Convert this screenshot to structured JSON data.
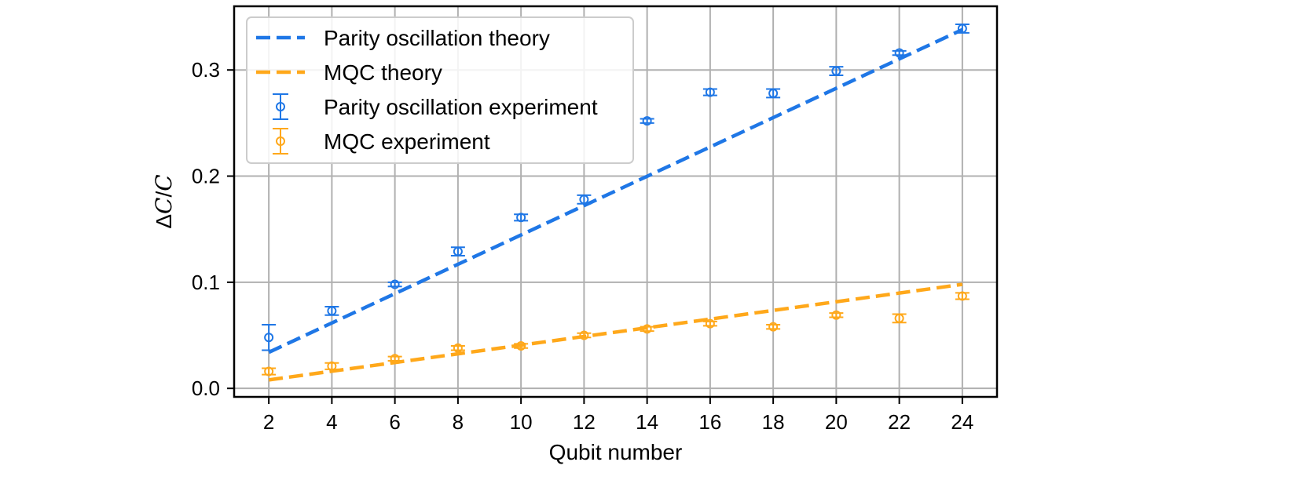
{
  "chart_data": {
    "type": "scatter",
    "xlabel": "Qubit number",
    "ylabel": "ΔC/C",
    "xlim": [
      0.9,
      25.1
    ],
    "ylim": [
      -0.008,
      0.36
    ],
    "x_ticks": [
      2,
      4,
      6,
      8,
      10,
      12,
      14,
      16,
      18,
      20,
      22,
      24
    ],
    "y_ticks": [
      0.0,
      0.1,
      0.2,
      0.3
    ],
    "y_tick_labels": [
      "0.0",
      "0.1",
      "0.2",
      "0.3"
    ],
    "grid": true,
    "legend_position": "upper-left",
    "theory": [
      {
        "name": "Parity oscillation theory",
        "color": "#1f77e6",
        "style": "dashed",
        "x": [
          2,
          24
        ],
        "y": [
          0.034,
          0.338
        ]
      },
      {
        "name": "MQC theory",
        "color": "#ffa81a",
        "style": "dashed",
        "x": [
          2,
          24
        ],
        "y": [
          0.008,
          0.098
        ]
      }
    ],
    "experiments": [
      {
        "name": "Parity oscillation experiment",
        "color": "#1f77e6",
        "x": [
          2,
          4,
          6,
          8,
          10,
          12,
          14,
          16,
          18,
          20,
          22,
          24
        ],
        "y": [
          0.048,
          0.073,
          0.098,
          0.129,
          0.161,
          0.178,
          0.252,
          0.279,
          0.278,
          0.299,
          0.316,
          0.339
        ],
        "err": [
          0.012,
          0.004,
          0.002,
          0.004,
          0.003,
          0.004,
          0.002,
          0.003,
          0.004,
          0.004,
          0.002,
          0.004
        ]
      },
      {
        "name": "MQC experiment",
        "color": "#ffa81a",
        "x": [
          2,
          4,
          6,
          8,
          10,
          12,
          14,
          16,
          18,
          20,
          22,
          24
        ],
        "y": [
          0.016,
          0.021,
          0.028,
          0.038,
          0.04,
          0.05,
          0.056,
          0.061,
          0.058,
          0.069,
          0.066,
          0.087
        ],
        "err": [
          0.003,
          0.003,
          0.002,
          0.002,
          0.002,
          0.002,
          0.002,
          0.002,
          0.002,
          0.002,
          0.004,
          0.003
        ]
      }
    ]
  }
}
